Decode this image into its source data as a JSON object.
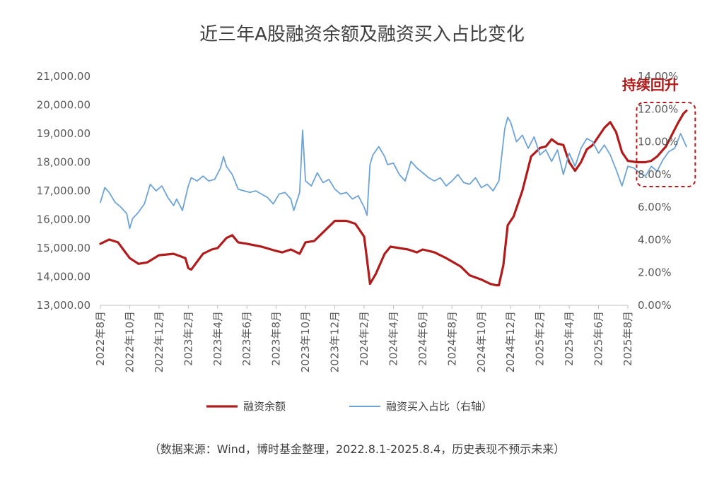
{
  "chart_data": {
    "type": "line",
    "title": "近三年A股融资余额及融资买入占比变化",
    "source": "（数据来源：Wind，博时基金整理，2022.8.1-2025.8.4，历史表现不预示未来）",
    "annotation": "持续回升",
    "left_axis": {
      "ylim": [
        13000,
        21000
      ],
      "ticks": [
        "13,000.00",
        "14,000.00",
        "15,000.00",
        "16,000.00",
        "17,000.00",
        "18,000.00",
        "19,000.00",
        "20,000.00",
        "21,000.00"
      ]
    },
    "right_axis": {
      "ylim": [
        0,
        14
      ],
      "ticks": [
        "0.00%",
        "2.00%",
        "4.00%",
        "6.00%",
        "8.00%",
        "10.00%",
        "12.00%",
        "14.00%"
      ]
    },
    "x_ticks": [
      "2022年8月",
      "2022年10月",
      "2022年12月",
      "2023年2月",
      "2023年4月",
      "2023年6月",
      "2023年8月",
      "2023年10月",
      "2023年12月",
      "2024年2月",
      "2024年4月",
      "2024年6月",
      "2024年8月",
      "2024年10月",
      "2024年12月",
      "2025年2月",
      "2025年4月",
      "2025年6月",
      "2025年8月"
    ],
    "series": [
      {
        "name": "融资余额",
        "axis": "left",
        "color": "#b01c1c",
        "points": [
          [
            0,
            15150
          ],
          [
            0.3,
            15300
          ],
          [
            0.6,
            15200
          ],
          [
            1.0,
            14650
          ],
          [
            1.3,
            14450
          ],
          [
            1.6,
            14500
          ],
          [
            2.0,
            14750
          ],
          [
            2.5,
            14800
          ],
          [
            2.9,
            14650
          ],
          [
            3.0,
            14300
          ],
          [
            3.1,
            14250
          ],
          [
            3.5,
            14800
          ],
          [
            3.8,
            14950
          ],
          [
            4.0,
            15000
          ],
          [
            4.3,
            15350
          ],
          [
            4.5,
            15450
          ],
          [
            4.7,
            15200
          ],
          [
            5.0,
            15150
          ],
          [
            5.5,
            15050
          ],
          [
            6.0,
            14900
          ],
          [
            6.2,
            14850
          ],
          [
            6.5,
            14950
          ],
          [
            6.8,
            14800
          ],
          [
            7.0,
            15200
          ],
          [
            7.3,
            15250
          ],
          [
            7.6,
            15550
          ],
          [
            8.0,
            15950
          ],
          [
            8.4,
            15950
          ],
          [
            8.7,
            15850
          ],
          [
            9.0,
            15400
          ],
          [
            9.1,
            14600
          ],
          [
            9.2,
            13750
          ],
          [
            9.4,
            14100
          ],
          [
            9.7,
            14800
          ],
          [
            9.9,
            15050
          ],
          [
            10.2,
            15000
          ],
          [
            10.5,
            14950
          ],
          [
            10.8,
            14850
          ],
          [
            11.0,
            14950
          ],
          [
            11.4,
            14850
          ],
          [
            11.8,
            14650
          ],
          [
            12.3,
            14350
          ],
          [
            12.6,
            14050
          ],
          [
            13.0,
            13900
          ],
          [
            13.3,
            13750
          ],
          [
            13.5,
            13700
          ],
          [
            13.6,
            13700
          ],
          [
            13.75,
            14400
          ],
          [
            13.9,
            15800
          ],
          [
            14.1,
            16100
          ],
          [
            14.4,
            17000
          ],
          [
            14.7,
            18200
          ],
          [
            15.0,
            18500
          ],
          [
            15.2,
            18550
          ],
          [
            15.4,
            18800
          ],
          [
            15.6,
            18650
          ],
          [
            15.8,
            18600
          ],
          [
            16.0,
            18000
          ],
          [
            16.2,
            17700
          ],
          [
            16.4,
            18000
          ],
          [
            16.6,
            18450
          ],
          [
            16.8,
            18600
          ],
          [
            17.0,
            18900
          ],
          [
            17.2,
            19200
          ],
          [
            17.4,
            19400
          ],
          [
            17.6,
            19050
          ],
          [
            17.8,
            18350
          ],
          [
            18.0,
            18050
          ],
          [
            18.3,
            18000
          ],
          [
            18.6,
            18000
          ],
          [
            18.8,
            18050
          ],
          [
            19.0,
            18200
          ],
          [
            19.3,
            18550
          ],
          [
            19.5,
            18950
          ],
          [
            19.7,
            19350
          ],
          [
            19.9,
            19700
          ],
          [
            20.0,
            19800
          ]
        ]
      },
      {
        "name": "融资买入占比（右轴）",
        "axis": "right",
        "color": "#6ea3d6",
        "points": [
          [
            0,
            6.3
          ],
          [
            0.15,
            7.2
          ],
          [
            0.3,
            6.9
          ],
          [
            0.5,
            6.3
          ],
          [
            0.7,
            6.0
          ],
          [
            0.9,
            5.6
          ],
          [
            1.0,
            4.7
          ],
          [
            1.1,
            5.3
          ],
          [
            1.3,
            5.7
          ],
          [
            1.5,
            6.2
          ],
          [
            1.7,
            7.4
          ],
          [
            1.9,
            7.0
          ],
          [
            2.1,
            7.3
          ],
          [
            2.3,
            6.6
          ],
          [
            2.5,
            6.1
          ],
          [
            2.6,
            6.5
          ],
          [
            2.8,
            5.8
          ],
          [
            3.0,
            7.3
          ],
          [
            3.1,
            7.8
          ],
          [
            3.3,
            7.6
          ],
          [
            3.5,
            7.9
          ],
          [
            3.7,
            7.6
          ],
          [
            3.9,
            7.7
          ],
          [
            4.1,
            8.4
          ],
          [
            4.2,
            9.1
          ],
          [
            4.3,
            8.5
          ],
          [
            4.5,
            8.0
          ],
          [
            4.7,
            7.1
          ],
          [
            4.9,
            7.0
          ],
          [
            5.1,
            6.9
          ],
          [
            5.3,
            7.0
          ],
          [
            5.5,
            6.8
          ],
          [
            5.7,
            6.6
          ],
          [
            5.9,
            6.2
          ],
          [
            6.1,
            6.8
          ],
          [
            6.3,
            6.9
          ],
          [
            6.5,
            6.5
          ],
          [
            6.6,
            5.8
          ],
          [
            6.8,
            6.9
          ],
          [
            6.9,
            10.7
          ],
          [
            7.0,
            7.6
          ],
          [
            7.2,
            7.3
          ],
          [
            7.4,
            8.1
          ],
          [
            7.6,
            7.5
          ],
          [
            7.8,
            7.7
          ],
          [
            8.0,
            7.1
          ],
          [
            8.2,
            6.8
          ],
          [
            8.4,
            6.9
          ],
          [
            8.6,
            6.5
          ],
          [
            8.8,
            6.7
          ],
          [
            9.0,
            6.0
          ],
          [
            9.1,
            5.5
          ],
          [
            9.2,
            8.6
          ],
          [
            9.3,
            9.2
          ],
          [
            9.5,
            9.7
          ],
          [
            9.7,
            9.1
          ],
          [
            9.8,
            8.6
          ],
          [
            10.0,
            8.7
          ],
          [
            10.2,
            8.0
          ],
          [
            10.4,
            7.6
          ],
          [
            10.6,
            8.8
          ],
          [
            10.8,
            8.4
          ],
          [
            11.0,
            8.1
          ],
          [
            11.2,
            7.8
          ],
          [
            11.4,
            7.6
          ],
          [
            11.6,
            7.8
          ],
          [
            11.8,
            7.3
          ],
          [
            12.0,
            7.6
          ],
          [
            12.2,
            8.0
          ],
          [
            12.4,
            7.5
          ],
          [
            12.6,
            7.4
          ],
          [
            12.8,
            7.8
          ],
          [
            13.0,
            7.2
          ],
          [
            13.2,
            7.4
          ],
          [
            13.4,
            7.0
          ],
          [
            13.6,
            7.6
          ],
          [
            13.8,
            10.8
          ],
          [
            13.9,
            11.5
          ],
          [
            14.0,
            11.2
          ],
          [
            14.2,
            10.0
          ],
          [
            14.4,
            10.4
          ],
          [
            14.6,
            9.6
          ],
          [
            14.8,
            10.3
          ],
          [
            15.0,
            9.2
          ],
          [
            15.2,
            9.5
          ],
          [
            15.4,
            8.8
          ],
          [
            15.6,
            9.5
          ],
          [
            15.8,
            8.0
          ],
          [
            16.0,
            9.3
          ],
          [
            16.2,
            8.5
          ],
          [
            16.4,
            9.6
          ],
          [
            16.6,
            10.2
          ],
          [
            16.8,
            10.0
          ],
          [
            17.0,
            9.3
          ],
          [
            17.2,
            9.8
          ],
          [
            17.4,
            9.2
          ],
          [
            17.6,
            8.3
          ],
          [
            17.8,
            7.3
          ],
          [
            18.0,
            8.5
          ],
          [
            18.2,
            8.4
          ],
          [
            18.4,
            8.1
          ],
          [
            18.6,
            7.9
          ],
          [
            18.8,
            8.5
          ],
          [
            19.0,
            8.2
          ],
          [
            19.2,
            8.9
          ],
          [
            19.4,
            9.4
          ],
          [
            19.6,
            9.6
          ],
          [
            19.8,
            10.5
          ],
          [
            19.9,
            10.1
          ],
          [
            20.0,
            9.7
          ]
        ]
      }
    ]
  }
}
